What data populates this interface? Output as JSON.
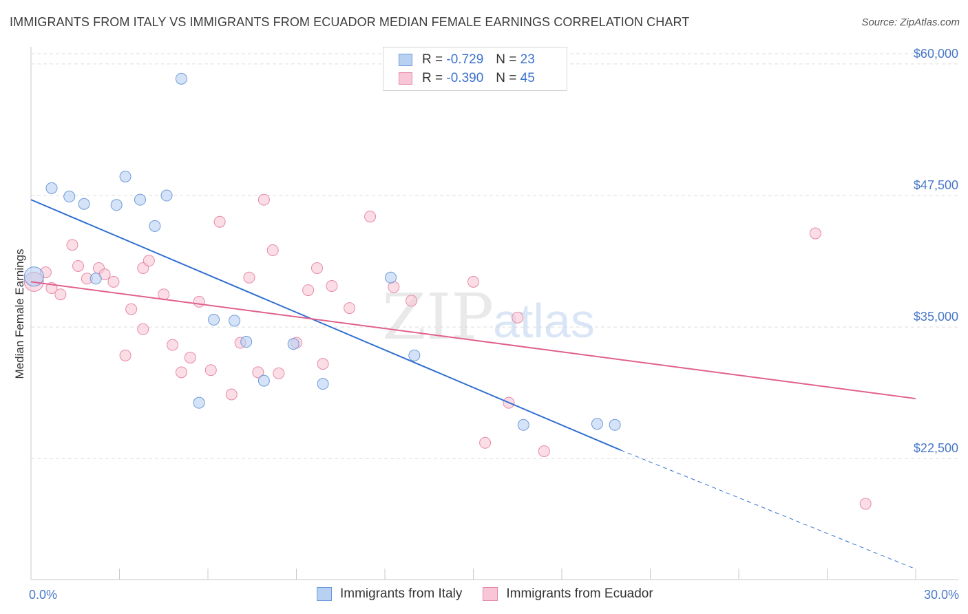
{
  "title": "IMMIGRANTS FROM ITALY VS IMMIGRANTS FROM ECUADOR MEDIAN FEMALE EARNINGS CORRELATION CHART",
  "source": "Source: ZipAtlas.com",
  "watermark": {
    "zip": "ZIP",
    "atlas": "atlas"
  },
  "colors": {
    "italy_fill": "#b8d0f2",
    "italy_stroke": "#6e9ad8",
    "italy_line": "#2f6fd0",
    "ecuador_fill": "#f8c6d6",
    "ecuador_stroke": "#e68aa8",
    "ecuador_line": "#e0608e",
    "tick_label": "#4a78c8",
    "grid": "#dddddd"
  },
  "legend": {
    "italy": {
      "r_label": "R =",
      "r_value": "-0.729",
      "n_label": "N =",
      "n_value": "23"
    },
    "ecuador": {
      "r_label": "R =",
      "r_value": "-0.390",
      "n_label": "N =",
      "n_value": "45"
    }
  },
  "chart_data": {
    "type": "scatter",
    "title": "IMMIGRANTS FROM ITALY VS IMMIGRANTS FROM ECUADOR MEDIAN FEMALE EARNINGS CORRELATION CHART",
    "xlabel": "",
    "ylabel": "Median Female Earnings",
    "xlim": [
      0,
      30
    ],
    "ylim": [
      11000,
      61500
    ],
    "x_tick_labels": [
      "0.0%",
      "30.0%"
    ],
    "y_ticks": [
      22500,
      35000,
      47500,
      60000
    ],
    "y_tick_labels": [
      "$22,500",
      "$35,000",
      "$47,500",
      "$60,000"
    ],
    "grid": true,
    "legend_position": "top-center",
    "series": [
      {
        "name": "Immigrants from Italy",
        "points": [
          [
            0.1,
            39800
          ],
          [
            0.7,
            48200
          ],
          [
            1.3,
            47400
          ],
          [
            1.8,
            46700
          ],
          [
            2.2,
            39600
          ],
          [
            2.9,
            46600
          ],
          [
            3.2,
            49300
          ],
          [
            3.7,
            47100
          ],
          [
            4.2,
            44600
          ],
          [
            4.6,
            47500
          ],
          [
            5.1,
            58600
          ],
          [
            5.7,
            27800
          ],
          [
            6.2,
            35700
          ],
          [
            6.9,
            35600
          ],
          [
            7.3,
            33600
          ],
          [
            7.9,
            29900
          ],
          [
            8.9,
            33400
          ],
          [
            9.9,
            29600
          ],
          [
            12.2,
            39700
          ],
          [
            13.0,
            32300
          ],
          [
            16.7,
            25700
          ],
          [
            19.2,
            25800
          ],
          [
            19.8,
            25700
          ]
        ],
        "trend": {
          "x0": 0,
          "y0": 47100,
          "x1": 20,
          "y1": 23300,
          "dashed_to_x": 30,
          "dashed_to_y": 12000
        }
      },
      {
        "name": "Immigrants from Ecuador",
        "points": [
          [
            0.1,
            39300
          ],
          [
            0.5,
            40200
          ],
          [
            0.7,
            38700
          ],
          [
            1.0,
            38100
          ],
          [
            1.4,
            42800
          ],
          [
            1.6,
            40800
          ],
          [
            1.9,
            39600
          ],
          [
            2.3,
            40600
          ],
          [
            2.5,
            40000
          ],
          [
            2.8,
            39300
          ],
          [
            3.2,
            32300
          ],
          [
            3.4,
            36700
          ],
          [
            3.8,
            34800
          ],
          [
            3.8,
            40600
          ],
          [
            4.0,
            41300
          ],
          [
            4.5,
            38100
          ],
          [
            4.8,
            33300
          ],
          [
            5.1,
            30700
          ],
          [
            5.4,
            32100
          ],
          [
            5.7,
            37400
          ],
          [
            6.1,
            30900
          ],
          [
            6.4,
            45000
          ],
          [
            6.8,
            28600
          ],
          [
            7.1,
            33500
          ],
          [
            7.4,
            39700
          ],
          [
            7.7,
            30700
          ],
          [
            7.9,
            47100
          ],
          [
            8.2,
            42300
          ],
          [
            8.4,
            30600
          ],
          [
            9.0,
            33500
          ],
          [
            9.4,
            38500
          ],
          [
            9.7,
            40600
          ],
          [
            9.9,
            31500
          ],
          [
            10.2,
            38900
          ],
          [
            10.8,
            36800
          ],
          [
            11.5,
            45500
          ],
          [
            12.3,
            38800
          ],
          [
            12.9,
            37500
          ],
          [
            15.0,
            39300
          ],
          [
            15.4,
            24000
          ],
          [
            16.2,
            27800
          ],
          [
            16.5,
            35900
          ],
          [
            17.4,
            23200
          ],
          [
            26.6,
            43900
          ],
          [
            28.3,
            18200
          ]
        ],
        "trend": {
          "x0": 0,
          "y0": 39300,
          "x1": 30,
          "y1": 28200
        }
      }
    ]
  },
  "bottom_legend": {
    "italy_label": "Immigrants from Italy",
    "ecuador_label": "Immigrants from Ecuador"
  }
}
